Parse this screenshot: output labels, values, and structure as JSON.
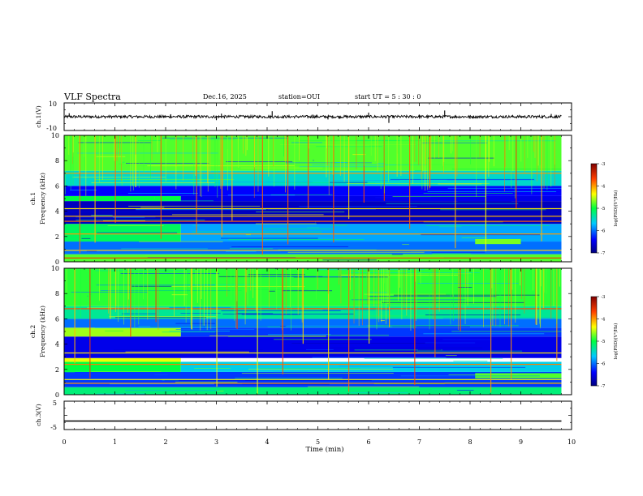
{
  "header": {
    "title": "VLF Spectra",
    "date": "Dec.16, 2025",
    "station": "station=OUI",
    "start_time": "start  UT  =   5  : 30 : 0"
  },
  "panels": {
    "ch1_wave": {
      "ylabel": "ch.1(V)",
      "ticks": [
        "10",
        "-10"
      ]
    },
    "ch1_spec": {
      "ylabel_top": "ch.1",
      "ylabel": "Frequency (kHz)",
      "ticks": [
        "0",
        "2",
        "4",
        "6",
        "8",
        "10"
      ]
    },
    "ch2_spec": {
      "ylabel_top": "ch.2",
      "ylabel": "Frequency (kHz)",
      "ticks": [
        "0",
        "2",
        "4",
        "6",
        "8",
        "10"
      ]
    },
    "ch3_wave": {
      "ylabel": "ch.3(V)",
      "ticks": [
        "5",
        "-5"
      ]
    }
  },
  "colorbar": {
    "label": "log(PSD)(V²/Hz)",
    "ticks": [
      "-3",
      "-4",
      "-5",
      "-6",
      "-7"
    ]
  },
  "xaxis": {
    "label": "Time (min)",
    "ticks": [
      "0",
      "1",
      "2",
      "3",
      "4",
      "5",
      "6",
      "7",
      "8",
      "9",
      "10"
    ]
  },
  "chart_data": [
    {
      "type": "line",
      "name": "ch.1 waveform",
      "xlabel": "Time (min)",
      "ylabel": "ch.1(V)",
      "xlim": [
        0,
        10
      ],
      "ylim": [
        -10,
        10
      ],
      "baseline_volts": 0,
      "noise_amplitude_volts": 1,
      "data_end_min": 9.8,
      "spikes": [
        {
          "t": 0.1,
          "v": 2.5
        },
        {
          "t": 2.1,
          "v": 1.8
        },
        {
          "t": 3.0,
          "v": -2.5
        },
        {
          "t": 3.1,
          "v": 2.2
        },
        {
          "t": 4.1,
          "v": 4.0
        },
        {
          "t": 4.9,
          "v": 1.5
        },
        {
          "t": 5.2,
          "v": -2.0
        },
        {
          "t": 6.0,
          "v": 3.0
        },
        {
          "t": 6.4,
          "v": -4.5
        },
        {
          "t": 7.0,
          "v": 1.5
        },
        {
          "t": 7.5,
          "v": 4.5
        },
        {
          "t": 8.0,
          "v": -1.5
        },
        {
          "t": 9.6,
          "v": 2.0
        }
      ]
    },
    {
      "type": "heatmap",
      "name": "ch.1 spectrogram",
      "xlabel": "Time (min)",
      "ylabel": "Frequency (kHz)",
      "xlim": [
        0,
        10
      ],
      "ylim": [
        0,
        10
      ],
      "zlabel": "log(PSD)(V²/Hz)",
      "zlim": [
        -7,
        -3
      ],
      "data_end_min": 9.8,
      "bands": [
        {
          "f_low": 0,
          "f_high": 0.6,
          "level": -4.8,
          "t_start": 0,
          "t_end": 9.8
        },
        {
          "f_low": 0.6,
          "f_high": 1.6,
          "level": -6.0,
          "t_start": 0,
          "t_end": 9.8
        },
        {
          "f_low": 1.6,
          "f_high": 3.0,
          "level": -5.1,
          "t_start": 0,
          "t_end": 2.3
        },
        {
          "f_low": 1.6,
          "f_high": 3.0,
          "level": -5.8,
          "t_start": 2.3,
          "t_end": 9.8
        },
        {
          "f_low": 3.0,
          "f_high": 4.8,
          "level": -6.7,
          "t_start": 0,
          "t_end": 9.8
        },
        {
          "f_low": 4.8,
          "f_high": 5.2,
          "level": -5.0,
          "t_start": 0,
          "t_end": 2.3
        },
        {
          "f_low": 4.8,
          "f_high": 5.2,
          "level": -6.5,
          "t_start": 2.3,
          "t_end": 9.8
        },
        {
          "f_low": 5.2,
          "f_high": 6.0,
          "level": -6.4,
          "t_start": 0,
          "t_end": 9.8
        },
        {
          "f_low": 6.0,
          "f_high": 7.2,
          "level": -5.5,
          "t_start": 0,
          "t_end": 9.8
        },
        {
          "f_low": 7.2,
          "f_high": 10.0,
          "level": -4.8,
          "t_start": 0,
          "t_end": 9.8
        },
        {
          "f_low": 1.4,
          "f_high": 1.8,
          "level": -4.7,
          "t_start": 8.1,
          "t_end": 9.0
        }
      ],
      "lines_khz": [
        {
          "f": 0.3,
          "level": -3.6
        },
        {
          "f": 0.9,
          "level": -4.2
        },
        {
          "f": 2.2,
          "level": -4.0
        },
        {
          "f": 3.2,
          "level": -3.8
        },
        {
          "f": 3.6,
          "level": -4.1
        },
        {
          "f": 4.2,
          "level": -4.3
        },
        {
          "f": 7.0,
          "level": -4.0
        }
      ],
      "sferics_min": [
        0.3,
        0.6,
        1.0,
        1.4,
        1.9,
        2.6,
        3.1,
        3.3,
        3.9,
        4.4,
        4.8,
        5.3,
        5.6,
        5.9,
        6.3,
        6.8,
        7.2,
        7.7,
        8.3,
        8.9,
        9.4
      ]
    },
    {
      "type": "heatmap",
      "name": "ch.2 spectrogram",
      "xlabel": "Time (min)",
      "ylabel": "Frequency (kHz)",
      "xlim": [
        0,
        10
      ],
      "ylim": [
        0,
        10
      ],
      "zlabel": "log(PSD)(V²/Hz)",
      "zlim": [
        -7,
        -3
      ],
      "data_end_min": 9.8,
      "bands": [
        {
          "f_low": 0,
          "f_high": 0.6,
          "level": -5.2,
          "t_start": 0,
          "t_end": 9.8
        },
        {
          "f_low": 0.6,
          "f_high": 1.8,
          "level": -6.2,
          "t_start": 0,
          "t_end": 9.8
        },
        {
          "f_low": 1.8,
          "f_high": 2.6,
          "level": -5.0,
          "t_start": 0,
          "t_end": 2.3
        },
        {
          "f_low": 1.8,
          "f_high": 2.6,
          "level": -5.6,
          "t_start": 2.3,
          "t_end": 9.8
        },
        {
          "f_low": 2.6,
          "f_high": 2.9,
          "level": -4.4,
          "t_start": 0,
          "t_end": 2.3
        },
        {
          "f_low": 2.9,
          "f_high": 4.6,
          "level": -6.5,
          "t_start": 0,
          "t_end": 9.8
        },
        {
          "f_low": 4.6,
          "f_high": 5.3,
          "level": -4.6,
          "t_start": 0,
          "t_end": 2.3
        },
        {
          "f_low": 4.6,
          "f_high": 5.3,
          "level": -6.2,
          "t_start": 2.3,
          "t_end": 9.8
        },
        {
          "f_low": 5.3,
          "f_high": 6.0,
          "level": -6.0,
          "t_start": 0,
          "t_end": 9.8
        },
        {
          "f_low": 6.0,
          "f_high": 7.0,
          "level": -5.3,
          "t_start": 0,
          "t_end": 9.8
        },
        {
          "f_low": 7.0,
          "f_high": 10.0,
          "level": -4.9,
          "t_start": 0,
          "t_end": 9.8
        },
        {
          "f_low": 1.3,
          "f_high": 1.7,
          "level": -4.8,
          "t_start": 8.1,
          "t_end": 9.8
        }
      ],
      "lines_khz": [
        {
          "f": 0.9,
          "level": -4.0
        },
        {
          "f": 2.4,
          "level": -3.9
        },
        {
          "f": 3.3,
          "level": -4.3
        },
        {
          "f": 6.8,
          "level": -3.7
        },
        {
          "f": 1.2,
          "level": -4.4
        }
      ],
      "sferics_min": [
        0.2,
        0.5,
        0.9,
        1.3,
        1.8,
        2.5,
        3.0,
        3.4,
        3.8,
        4.3,
        4.7,
        5.2,
        5.6,
        6.0,
        6.4,
        6.9,
        7.3,
        7.8,
        8.4,
        8.8,
        9.3,
        9.7
      ]
    },
    {
      "type": "line",
      "name": "ch.3 waveform",
      "xlabel": "Time (min)",
      "ylabel": "ch.3(V)",
      "xlim": [
        0,
        10
      ],
      "ylim": [
        -5,
        5
      ],
      "x": [
        0,
        9.8
      ],
      "y": [
        -2,
        -2
      ]
    }
  ]
}
